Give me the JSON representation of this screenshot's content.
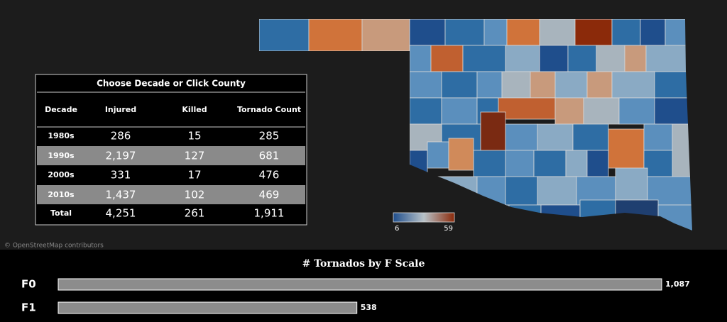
{
  "map": {
    "attribution": "© OpenStreetMap contributors",
    "legend": {
      "min": "6",
      "max": "59"
    }
  },
  "table": {
    "title": "Choose Decade or Click County",
    "columns": [
      "Decade",
      "Injured",
      "Killed",
      "Tornado Count"
    ],
    "rows": [
      [
        "1980s",
        "286",
        "15",
        "285"
      ],
      [
        "1990s",
        "2,197",
        "127",
        "681"
      ],
      [
        "2000s",
        "331",
        "17",
        "476"
      ],
      [
        "2010s",
        "1,437",
        "102",
        "469"
      ],
      [
        "Total",
        "4,251",
        "261",
        "1,911"
      ]
    ]
  },
  "chart_data": {
    "type": "bar",
    "title": "# Tornados by F Scale",
    "categories": [
      "F0",
      "F1"
    ],
    "values": [
      1087,
      538
    ],
    "value_labels": [
      "1,087",
      "538"
    ],
    "color": "#8c8c8c"
  }
}
